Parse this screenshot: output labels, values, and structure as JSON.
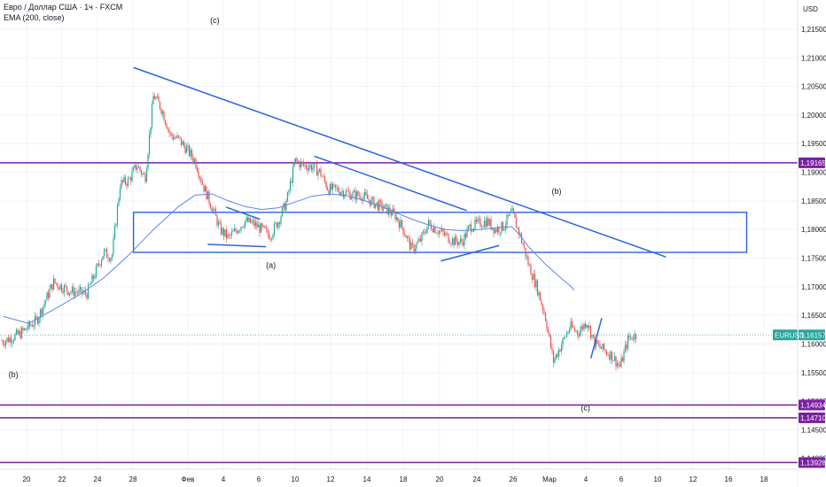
{
  "header": {
    "symbol_title": "Евро / Доллар США · 1ч · FXCM",
    "indicator": "EMA (200, close)"
  },
  "currency": "USD",
  "colors": {
    "bull": "#26a69a",
    "bear": "#ef5350",
    "ema": "#5b84e8",
    "drawing": "#2d62e0",
    "level": "#7b1fa2",
    "price_line": "#26a69a"
  },
  "chart_data": {
    "type": "candlestick",
    "symbol": "EURUSD",
    "last_price": "1,16157",
    "y_range": [
      1.1381,
      1.2201
    ],
    "y_ticks": [
      "1,21500",
      "1,21000",
      "1,20500",
      "1,20000",
      "1,19500",
      "1,19000",
      "1,18500",
      "1,18000",
      "1,17500",
      "1,17000",
      "1,16500",
      "1,16000",
      "1,15500",
      "1,15000",
      "1,14500",
      "1,14000"
    ],
    "x_ticks": [
      "20",
      "22",
      "24",
      "28",
      "Фев",
      "4",
      "6",
      "10",
      "12",
      "14",
      "18",
      "20",
      "24",
      "26",
      "Мар",
      "4",
      "6",
      "10",
      "12",
      "16",
      "18"
    ],
    "price_path": [
      [
        0,
        1.1605
      ],
      [
        2,
        1.1618
      ],
      [
        4,
        1.1642
      ],
      [
        6,
        1.1708
      ],
      [
        8,
        1.1692
      ],
      [
        10,
        1.1688
      ],
      [
        12,
        1.176
      ],
      [
        13,
        1.1752
      ],
      [
        14,
        1.188
      ],
      [
        15,
        1.1885
      ],
      [
        16,
        1.1912
      ],
      [
        17,
        1.189
      ],
      [
        18,
        1.2035
      ],
      [
        19,
        1.201
      ],
      [
        20,
        1.1965
      ],
      [
        21,
        1.1958
      ],
      [
        22,
        1.194
      ],
      [
        23,
        1.192
      ],
      [
        24,
        1.1875
      ],
      [
        25,
        1.184
      ],
      [
        26,
        1.18
      ],
      [
        27,
        1.1785
      ],
      [
        28,
        1.18
      ],
      [
        29,
        1.1815
      ],
      [
        30,
        1.181
      ],
      [
        31,
        1.18
      ],
      [
        32,
        1.179
      ],
      [
        33,
        1.1815
      ],
      [
        34,
        1.185
      ],
      [
        35,
        1.192
      ],
      [
        36,
        1.1912
      ],
      [
        37,
        1.191
      ],
      [
        38,
        1.19
      ],
      [
        39,
        1.187
      ],
      [
        40,
        1.187
      ],
      [
        41,
        1.1865
      ],
      [
        42,
        1.186
      ],
      [
        43,
        1.186
      ],
      [
        44,
        1.185
      ],
      [
        45,
        1.1842
      ],
      [
        46,
        1.1835
      ],
      [
        47,
        1.1825
      ],
      [
        48,
        1.18
      ],
      [
        49,
        1.1765
      ],
      [
        50,
        1.178
      ],
      [
        51,
        1.181
      ],
      [
        52,
        1.18
      ],
      [
        53,
        1.179
      ],
      [
        54,
        1.178
      ],
      [
        55,
        1.1778
      ],
      [
        56,
        1.1805
      ],
      [
        57,
        1.181
      ],
      [
        58,
        1.1815
      ],
      [
        59,
        1.18
      ],
      [
        60,
        1.1805
      ],
      [
        61,
        1.183
      ],
      [
        62,
        1.179
      ],
      [
        63,
        1.174
      ],
      [
        64,
        1.17
      ],
      [
        65,
        1.165
      ],
      [
        66,
        1.157
      ],
      [
        67,
        1.16
      ],
      [
        68,
        1.163
      ],
      [
        69,
        1.162
      ],
      [
        70,
        1.164
      ],
      [
        71,
        1.16
      ],
      [
        72,
        1.159
      ],
      [
        73,
        1.158
      ],
      [
        74,
        1.156
      ],
      [
        75,
        1.161
      ],
      [
        76,
        1.1616
      ]
    ],
    "ema200": [
      [
        0,
        1.1648
      ],
      [
        3,
        1.1636
      ],
      [
        6,
        1.166
      ],
      [
        9,
        1.1685
      ],
      [
        12,
        1.1715
      ],
      [
        15,
        1.1755
      ],
      [
        18,
        1.18
      ],
      [
        21,
        1.184
      ],
      [
        23,
        1.186
      ],
      [
        25,
        1.1862
      ],
      [
        27,
        1.185
      ],
      [
        29,
        1.184
      ],
      [
        31,
        1.1835
      ],
      [
        33,
        1.1838
      ],
      [
        35,
        1.1848
      ],
      [
        37,
        1.1858
      ],
      [
        39,
        1.1862
      ],
      [
        41,
        1.186
      ],
      [
        43,
        1.1852
      ],
      [
        45,
        1.1842
      ],
      [
        47,
        1.183
      ],
      [
        49,
        1.1818
      ],
      [
        51,
        1.1808
      ],
      [
        53,
        1.18
      ],
      [
        55,
        1.1798
      ],
      [
        57,
        1.18
      ],
      [
        59,
        1.1803
      ],
      [
        61,
        1.1805
      ],
      [
        62,
        1.179
      ],
      [
        63,
        1.177
      ],
      [
        64,
        1.1755
      ],
      [
        65,
        1.174
      ],
      [
        66,
        1.1727
      ],
      [
        67,
        1.1714
      ],
      [
        68,
        1.1702
      ],
      [
        68.5,
        1.1694
      ]
    ]
  },
  "levels": [
    {
      "price": 1.19165,
      "label": "1,19165"
    },
    {
      "price": 1.14934,
      "label": "1,14934"
    },
    {
      "price": 1.1471,
      "label": "1,14710"
    },
    {
      "price": 1.13928,
      "label": "1,13928"
    }
  ],
  "rectangle": {
    "x_from": 15.6,
    "x_to": 89.2,
    "y_top": 1.183,
    "y_bottom": 1.176
  },
  "trendlines": [
    {
      "from": [
        15.6,
        1.2083
      ],
      "to": [
        79.5,
        1.1752
      ]
    },
    {
      "from": [
        37.3,
        1.1928
      ],
      "to": [
        55.6,
        1.1833
      ]
    },
    {
      "from": [
        26.7,
        1.1839
      ],
      "to": [
        30.8,
        1.1818
      ]
    },
    {
      "from": [
        24.5,
        1.1774
      ],
      "to": [
        31.5,
        1.177
      ]
    },
    {
      "from": [
        52.5,
        1.1745
      ],
      "to": [
        59.5,
        1.1772
      ]
    },
    {
      "from": [
        70.5,
        1.1575
      ],
      "to": [
        71.8,
        1.1645
      ]
    }
  ],
  "wave_labels": [
    {
      "text": "(c)",
      "x": 24.8,
      "price": 1.2161
    },
    {
      "text": "(a)",
      "x": 31.5,
      "price": 1.1733
    },
    {
      "text": "(b)",
      "x": 65.8,
      "price": 1.1862
    },
    {
      "text": "(b)",
      "x": 0.6,
      "price": 1.1542
    },
    {
      "text": "(c)",
      "x": 69.3,
      "price": 1.1484
    }
  ]
}
